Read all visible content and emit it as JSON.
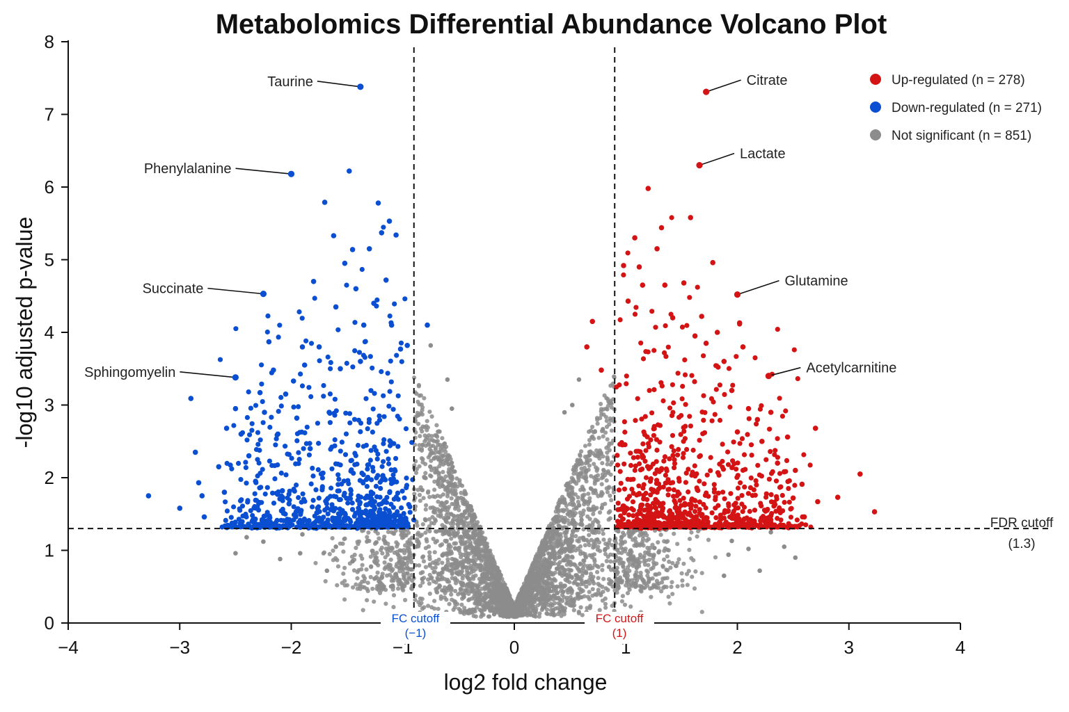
{
  "chart_data": {
    "type": "scatter",
    "title": "Metabolomics Differential Abundance Volcano Plot",
    "xlabel": "log2 fold change",
    "ylabel": "-log10 adjusted p-value",
    "xlim": [
      -4,
      4
    ],
    "ylim": [
      0,
      8
    ],
    "xticks": [
      "−4",
      "−3",
      "−2",
      "−1",
      "0",
      "1",
      "2",
      "3",
      "4"
    ],
    "xtick_values": [
      -4,
      -3,
      -2,
      -1,
      0,
      1,
      2,
      3,
      4
    ],
    "yticks": [
      "0",
      "1",
      "2",
      "3",
      "4",
      "5",
      "6",
      "7",
      "8"
    ],
    "ytick_values": [
      0,
      1,
      2,
      3,
      4,
      5,
      6,
      7,
      8
    ],
    "grid": false,
    "legend_position": "top-right",
    "colors": {
      "up": "#d41414",
      "down": "#0a4fd1",
      "ns": "#8c8c8c"
    },
    "series": [
      {
        "key": "up",
        "name": "Up-regulated (n = 278)",
        "count": 278
      },
      {
        "key": "down",
        "name": "Down-regulated (n = 271)",
        "count": 271
      },
      {
        "key": "ns",
        "name": "Not significant (n = 851)",
        "count": 851
      }
    ],
    "thresholds": {
      "fdr": {
        "value": 1.3,
        "label_line1": "FDR cutoff",
        "label_line2": "(1.3)"
      },
      "fc_low": {
        "value": -0.9,
        "label_line1": "FC cutoff",
        "label_line2": "(−1)"
      },
      "fc_high": {
        "value": 0.9,
        "label_line1": "FC cutoff",
        "label_line2": "(1)"
      }
    },
    "labeled_points": [
      {
        "label": "Taurine",
        "x": -1.38,
        "y": 7.38,
        "group": "down",
        "side": "left"
      },
      {
        "label": "Phenylalanine",
        "x": -2.0,
        "y": 6.18,
        "group": "down",
        "side": "left"
      },
      {
        "label": "Succinate",
        "x": -2.25,
        "y": 4.53,
        "group": "down",
        "side": "left"
      },
      {
        "label": "Sphingomyelin",
        "x": -2.5,
        "y": 3.38,
        "group": "down",
        "side": "left"
      },
      {
        "label": "Citrate",
        "x": 1.72,
        "y": 7.31,
        "group": "up",
        "side": "right"
      },
      {
        "label": "Lactate",
        "x": 1.66,
        "y": 6.3,
        "group": "up",
        "side": "right"
      },
      {
        "label": "Glutamine",
        "x": 2.0,
        "y": 4.52,
        "group": "up",
        "side": "right"
      },
      {
        "label": "Acetylcarnitine",
        "x": 2.28,
        "y": 3.4,
        "group": "up",
        "side": "right"
      }
    ],
    "points": {
      "down": [
        [
          -3.28,
          1.75
        ],
        [
          -3.0,
          1.58
        ],
        [
          -2.9,
          3.09
        ],
        [
          -2.86,
          2.35
        ],
        [
          -2.83,
          1.93
        ],
        [
          -2.8,
          1.75
        ],
        [
          -2.78,
          1.46
        ],
        [
          -2.65,
          2.15
        ],
        [
          -2.6,
          1.8
        ],
        [
          -2.58,
          2.68
        ],
        [
          -2.5,
          2.95
        ],
        [
          -2.45,
          2.6
        ],
        [
          -2.38,
          2.3
        ],
        [
          -2.32,
          1.95
        ],
        [
          -2.28,
          3.17
        ],
        [
          -2.24,
          2.9
        ],
        [
          -2.2,
          3.87
        ],
        [
          -2.16,
          3.48
        ],
        [
          -2.12,
          2.6
        ],
        [
          -2.08,
          1.82
        ],
        [
          -2.05,
          3.15
        ],
        [
          -2.02,
          1.64
        ],
        [
          -1.98,
          3.33
        ],
        [
          -1.95,
          2.82
        ],
        [
          -1.9,
          3.8
        ],
        [
          -1.88,
          3.55
        ],
        [
          -1.83,
          2.4
        ],
        [
          -1.8,
          4.7
        ],
        [
          -1.75,
          3.8
        ],
        [
          -1.72,
          2.06
        ],
        [
          -1.7,
          5.79
        ],
        [
          -1.66,
          2.9
        ],
        [
          -1.62,
          5.33
        ],
        [
          -1.6,
          4.35
        ],
        [
          -1.56,
          3.5
        ],
        [
          -1.52,
          4.95
        ],
        [
          -1.48,
          6.22
        ],
        [
          -1.45,
          5.14
        ],
        [
          -1.42,
          4.6
        ],
        [
          -1.38,
          3.6
        ],
        [
          -1.35,
          4.1
        ],
        [
          -1.3,
          5.15
        ],
        [
          -1.26,
          4.4
        ],
        [
          -1.22,
          5.78
        ],
        [
          -1.19,
          5.37
        ],
        [
          -1.15,
          4.72
        ],
        [
          -1.12,
          5.53
        ],
        [
          -1.1,
          4.1
        ],
        [
          -1.06,
          5.34
        ],
        [
          -1.02,
          3.77
        ],
        [
          -0.96,
          3.82
        ],
        [
          -0.78,
          4.1
        ]
      ],
      "up": [
        [
          0.65,
          3.8
        ],
        [
          0.7,
          4.15
        ],
        [
          0.78,
          3.48
        ],
        [
          0.98,
          4.92
        ],
        [
          1.02,
          4.43
        ],
        [
          1.08,
          5.3
        ],
        [
          1.12,
          4.9
        ],
        [
          1.15,
          4.65
        ],
        [
          1.2,
          5.98
        ],
        [
          1.28,
          5.15
        ],
        [
          1.32,
          5.44
        ],
        [
          1.35,
          4.65
        ],
        [
          1.42,
          4.2
        ],
        [
          1.52,
          4.68
        ],
        [
          1.58,
          5.58
        ],
        [
          1.62,
          3.95
        ],
        [
          1.68,
          4.22
        ],
        [
          1.72,
          3.85
        ],
        [
          1.78,
          4.96
        ],
        [
          1.82,
          4.0
        ],
        [
          1.88,
          3.6
        ],
        [
          1.95,
          3.2
        ],
        [
          2.02,
          4.13
        ],
        [
          2.05,
          3.8
        ],
        [
          2.1,
          2.95
        ],
        [
          2.18,
          2.8
        ],
        [
          2.22,
          2.5
        ],
        [
          2.3,
          2.9
        ],
        [
          2.36,
          2.2
        ],
        [
          2.45,
          2.56
        ],
        [
          2.5,
          1.72
        ],
        [
          2.58,
          1.91
        ],
        [
          2.7,
          2.68
        ],
        [
          2.72,
          1.67
        ],
        [
          2.9,
          1.73
        ],
        [
          3.1,
          2.05
        ],
        [
          3.23,
          1.53
        ],
        [
          2.6,
          1.46
        ],
        [
          2.3,
          1.38
        ],
        [
          2.52,
          2.1
        ],
        [
          2.42,
          2.08
        ],
        [
          2.0,
          2.63
        ]
      ],
      "ns": [
        [
          -2.4,
          1.18
        ],
        [
          -2.5,
          0.96
        ],
        [
          -2.1,
          0.88
        ],
        [
          -1.92,
          0.96
        ],
        [
          -1.68,
          0.72
        ],
        [
          -1.9,
          1.22
        ],
        [
          -2.25,
          1.12
        ],
        [
          -1.6,
          1.05
        ],
        [
          -1.45,
          0.85
        ],
        [
          -0.75,
          3.82
        ],
        [
          -0.6,
          3.35
        ],
        [
          -0.56,
          2.95
        ],
        [
          0.58,
          3.35
        ],
        [
          0.45,
          2.9
        ],
        [
          0.52,
          3.0
        ],
        [
          2.3,
          1.25
        ],
        [
          2.42,
          1.05
        ],
        [
          2.52,
          0.9
        ],
        [
          1.95,
          1.13
        ],
        [
          2.2,
          0.72
        ],
        [
          1.88,
          0.65
        ],
        [
          2.1,
          1.02
        ],
        [
          1.92,
          0.94
        ]
      ]
    }
  }
}
